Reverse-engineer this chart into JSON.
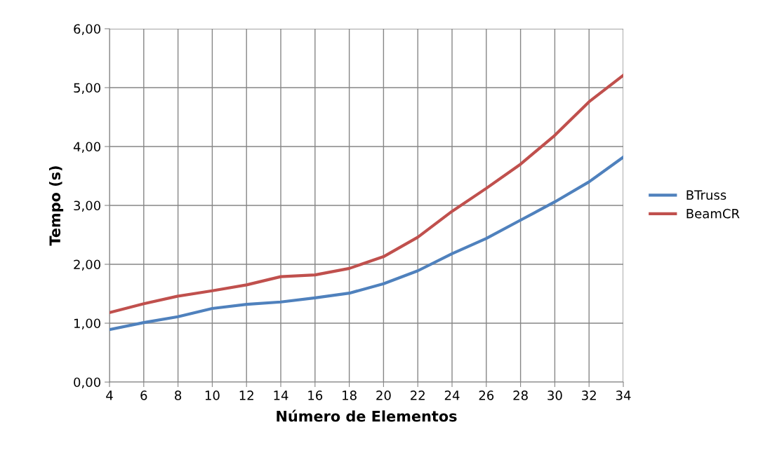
{
  "chart_data": {
    "type": "line",
    "xlabel": "Número de Elementos",
    "ylabel": "Tempo (s)",
    "categories": [
      "4",
      "6",
      "8",
      "10",
      "12",
      "14",
      "16",
      "18",
      "20",
      "22",
      "24",
      "26",
      "28",
      "30",
      "32",
      "34"
    ],
    "series": [
      {
        "name": "BTruss",
        "color": "#4f81bd",
        "values": [
          0.89,
          1.01,
          1.11,
          1.25,
          1.32,
          1.36,
          1.43,
          1.51,
          1.67,
          1.89,
          2.18,
          2.44,
          2.75,
          3.06,
          3.4,
          3.82
        ]
      },
      {
        "name": "BeamCR",
        "color": "#c0504d",
        "values": [
          1.18,
          1.33,
          1.46,
          1.55,
          1.65,
          1.79,
          1.82,
          1.93,
          2.13,
          2.46,
          2.9,
          3.29,
          3.7,
          4.19,
          4.76,
          5.21
        ]
      }
    ],
    "ylim": [
      0,
      6
    ],
    "yticks": [
      {
        "value": 0,
        "label": "0,00"
      },
      {
        "value": 1,
        "label": "1,00"
      },
      {
        "value": 2,
        "label": "2,00"
      },
      {
        "value": 3,
        "label": "3,00"
      },
      {
        "value": 4,
        "label": "4,00"
      },
      {
        "value": 5,
        "label": "5,00"
      },
      {
        "value": 6,
        "label": "6,00"
      }
    ],
    "grid": true,
    "legend": "right",
    "marker": "none",
    "line_style": "solid"
  }
}
